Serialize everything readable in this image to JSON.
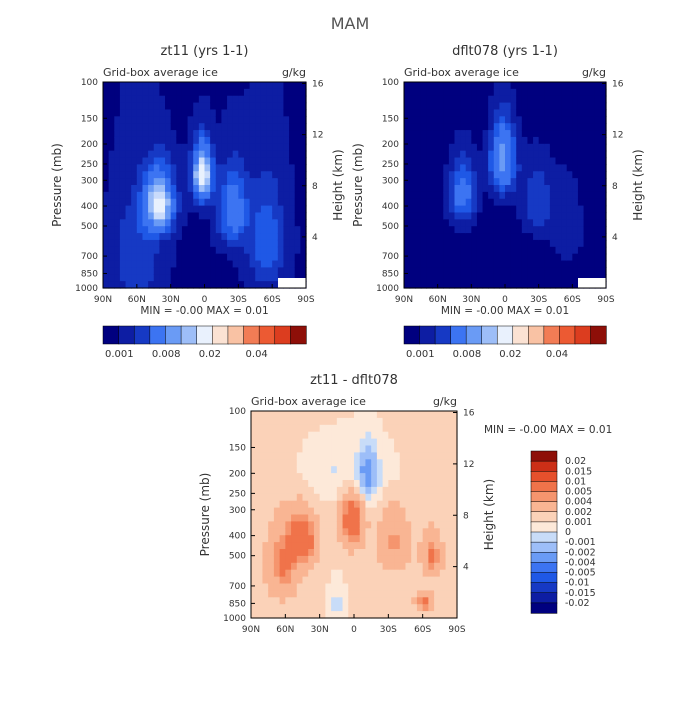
{
  "figure_title": "MAM",
  "colors": {
    "blue_scale": [
      "#00007f",
      "#0d1da3",
      "#1639c4",
      "#1f58e6",
      "#3c74f2",
      "#6a9bf5",
      "#9dbef8",
      "#c9dbfb",
      "#e9f1fd"
    ],
    "red_scale": [
      "#fbe2d3",
      "#f9c2a4",
      "#f6a07a",
      "#f27c55",
      "#ec5a33",
      "#dc3d1f",
      "#bd2412",
      "#8e0f08"
    ],
    "diff_scale": [
      "#00007f",
      "#0d1da3",
      "#1639c4",
      "#1f58e6",
      "#3c74f2",
      "#6a9bf5",
      "#9dbef8",
      "#c8dcf8",
      "#fde9d9",
      "#fbd2b8",
      "#f9b593",
      "#f5956e",
      "#f0734a",
      "#e6502c",
      "#cc2f17",
      "#8e0f08"
    ]
  },
  "chart_data": [
    {
      "type": "heatmap",
      "panel": "top-left",
      "title": "zt11 (yrs 1-1)",
      "subtitle_left": "Grid-box average ice",
      "subtitle_right": "g/kg",
      "ylabel": "Pressure (mb)",
      "ylabel_right": "Height (km)",
      "x_ticks": [
        "90N",
        "60N",
        "30N",
        "0",
        "30S",
        "60S",
        "90S"
      ],
      "x_values": [
        90,
        60,
        30,
        0,
        -30,
        -60,
        -90
      ],
      "y_ticks": [
        "100",
        "150",
        "200",
        "250",
        "300",
        "400",
        "500",
        "700",
        "850",
        "1000"
      ],
      "y_values": [
        100,
        150,
        200,
        250,
        300,
        400,
        500,
        700,
        850,
        1000
      ],
      "right_ticks": [
        "16",
        "12",
        "8",
        "4"
      ],
      "right_values": [
        16,
        12,
        8,
        4
      ],
      "stats": "MIN =   -0.00   MAX =    0.01",
      "colorbar_labels": [
        "0.001",
        "0.008",
        "0.02",
        "0.04"
      ],
      "colorbar_label_index": [
        0,
        3,
        6,
        9
      ],
      "colorbar_count": 13,
      "features": [
        {
          "lat": 2,
          "p": 280,
          "amp": 0.0095,
          "sx": 6,
          "sp": 60
        },
        {
          "lat": 40,
          "p": 390,
          "amp": 0.0085,
          "sx": 9,
          "sp": 90
        },
        {
          "lat": -25,
          "p": 420,
          "amp": 0.0045,
          "sx": 9,
          "sp": 120
        },
        {
          "lat": -55,
          "p": 600,
          "amp": 0.003,
          "sx": 12,
          "sp": 250
        },
        {
          "lat": 60,
          "p": 700,
          "amp": 0.0022,
          "sx": 15,
          "sp": 300
        }
      ],
      "base": 0.0008
    },
    {
      "type": "heatmap",
      "panel": "top-right",
      "title": "dflt078 (yrs 1-1)",
      "subtitle_left": "Grid-box average ice",
      "subtitle_right": "g/kg",
      "ylabel": "Pressure (mb)",
      "ylabel_right": "Height (km)",
      "x_ticks": [
        "90N",
        "60N",
        "30N",
        "0",
        "30S",
        "60S",
        "90S"
      ],
      "x_values": [
        90,
        60,
        30,
        0,
        -30,
        -60,
        -90
      ],
      "y_ticks": [
        "100",
        "150",
        "200",
        "250",
        "300",
        "400",
        "500",
        "700",
        "850",
        "1000"
      ],
      "y_values": [
        100,
        150,
        200,
        250,
        300,
        400,
        500,
        700,
        850,
        1000
      ],
      "right_ticks": [
        "16",
        "12",
        "8",
        "4"
      ],
      "right_values": [
        16,
        12,
        8,
        4
      ],
      "stats": "MIN =   -0.00   MAX =    0.01",
      "colorbar_labels": [
        "0.001",
        "0.008",
        "0.02",
        "0.04"
      ],
      "colorbar_label_index": [
        0,
        3,
        6,
        9
      ],
      "colorbar_count": 13,
      "features": [
        {
          "lat": 2,
          "p": 240,
          "amp": 0.0065,
          "sx": 8,
          "sp": 70
        },
        {
          "lat": 38,
          "p": 350,
          "amp": 0.0045,
          "sx": 9,
          "sp": 90
        },
        {
          "lat": -28,
          "p": 380,
          "amp": 0.0025,
          "sx": 10,
          "sp": 110
        },
        {
          "lat": -55,
          "p": 500,
          "amp": 0.0012,
          "sx": 12,
          "sp": 200
        }
      ],
      "base": 0.0004
    },
    {
      "type": "heatmap",
      "panel": "bottom",
      "title": "zt11 - dflt078",
      "subtitle_left": "Grid-box average ice",
      "subtitle_right": "g/kg",
      "ylabel": "Pressure (mb)",
      "ylabel_right": "Height (km)",
      "x_ticks": [
        "90N",
        "60N",
        "30N",
        "0",
        "30S",
        "60S",
        "90S"
      ],
      "x_values": [
        90,
        60,
        30,
        0,
        -30,
        -60,
        -90
      ],
      "y_ticks": [
        "100",
        "150",
        "200",
        "250",
        "300",
        "400",
        "500",
        "700",
        "850",
        "1000"
      ],
      "y_values": [
        100,
        150,
        200,
        250,
        300,
        400,
        500,
        700,
        850,
        1000
      ],
      "right_ticks": [
        "16",
        "12",
        "8",
        "4"
      ],
      "right_values": [
        16,
        12,
        8,
        4
      ],
      "stats": "MIN =   -0.00   MAX =    0.01",
      "colorbar_labels": [
        "0.02",
        "0.015",
        "0.01",
        "0.005",
        "0.004",
        "0.002",
        "0.001",
        "0",
        "-0.001",
        "-0.002",
        "-0.004",
        "-0.005",
        "-0.01",
        "-0.015",
        "-0.02"
      ],
      "features": [
        {
          "lat": 2,
          "p": 340,
          "amp": 0.006,
          "sx": 7,
          "sp": 70
        },
        {
          "lat": 45,
          "p": 420,
          "amp": 0.006,
          "sx": 8,
          "sp": 80
        },
        {
          "lat": 62,
          "p": 550,
          "amp": 0.004,
          "sx": 9,
          "sp": 150
        },
        {
          "lat": -35,
          "p": 430,
          "amp": 0.003,
          "sx": 9,
          "sp": 100
        },
        {
          "lat": -68,
          "p": 500,
          "amp": 0.004,
          "sx": 6,
          "sp": 80
        },
        {
          "lat": -62,
          "p": 840,
          "amp": 0.0045,
          "sx": 5,
          "sp": 60
        },
        {
          "lat": -12,
          "p": 200,
          "amp": -0.003,
          "sx": 6,
          "sp": 45
        },
        {
          "lat": 5,
          "p": 200,
          "amp": -0.0015,
          "sx": 30,
          "sp": 50
        },
        {
          "lat": 15,
          "p": 850,
          "amp": -0.0015,
          "sx": 6,
          "sp": 150
        }
      ],
      "base": 0.0013
    }
  ]
}
